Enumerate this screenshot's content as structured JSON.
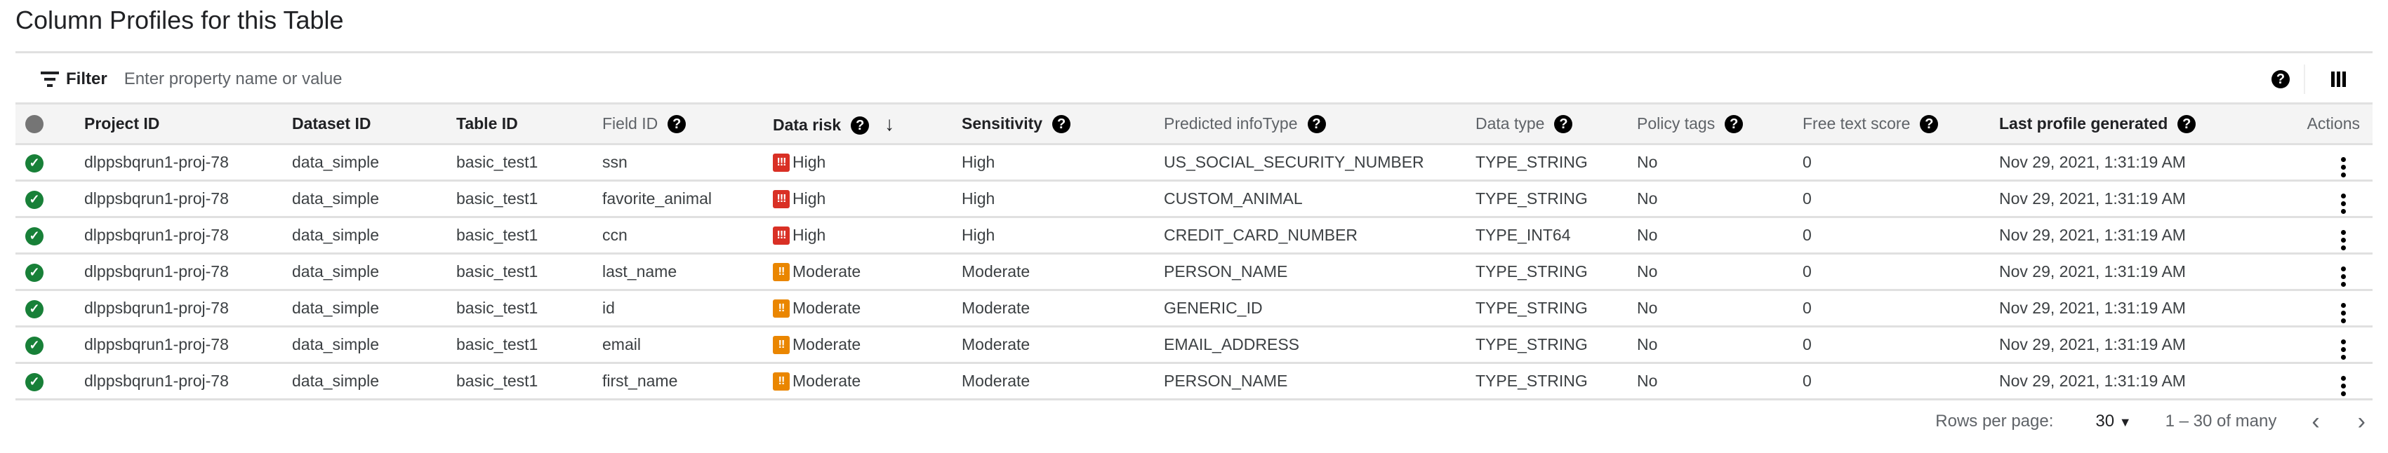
{
  "page": {
    "title": "Column Profiles for this Table"
  },
  "filter": {
    "label": "Filter",
    "placeholder": "Enter property name or value"
  },
  "toolbar": {
    "help_icon": "help-icon",
    "columns_icon": "column-view-icon"
  },
  "colors": {
    "high": "#d93025",
    "moderate": "#ea8600",
    "success": "#188038"
  },
  "table": {
    "headers": [
      "Project ID",
      "Dataset ID",
      "Table ID",
      "Field ID",
      "Data risk",
      "Sensitivity",
      "Predicted infoType",
      "Data type",
      "Policy tags",
      "Free text score",
      "Last profile generated",
      "Actions"
    ],
    "sort": {
      "column": "Data risk",
      "direction": "descending"
    },
    "rows": [
      {
        "project": "dlppsbqrun1-proj-78",
        "dataset": "data_simple",
        "table": "basic_test1",
        "field": "ssn",
        "risk": "High",
        "risk_glyph": "!!!",
        "sensitivity": "High",
        "infotype": "US_SOCIAL_SECURITY_NUMBER",
        "datatype": "TYPE_STRING",
        "policy": "No",
        "freetext": "0",
        "generated": "Nov 29, 2021, 1:31:19 AM"
      },
      {
        "project": "dlppsbqrun1-proj-78",
        "dataset": "data_simple",
        "table": "basic_test1",
        "field": "favorite_animal",
        "risk": "High",
        "risk_glyph": "!!!",
        "sensitivity": "High",
        "infotype": "CUSTOM_ANIMAL",
        "datatype": "TYPE_STRING",
        "policy": "No",
        "freetext": "0",
        "generated": "Nov 29, 2021, 1:31:19 AM"
      },
      {
        "project": "dlppsbqrun1-proj-78",
        "dataset": "data_simple",
        "table": "basic_test1",
        "field": "ccn",
        "risk": "High",
        "risk_glyph": "!!!",
        "sensitivity": "High",
        "infotype": "CREDIT_CARD_NUMBER",
        "datatype": "TYPE_INT64",
        "policy": "No",
        "freetext": "0",
        "generated": "Nov 29, 2021, 1:31:19 AM"
      },
      {
        "project": "dlppsbqrun1-proj-78",
        "dataset": "data_simple",
        "table": "basic_test1",
        "field": "last_name",
        "risk": "Moderate",
        "risk_glyph": "!!",
        "sensitivity": "Moderate",
        "infotype": "PERSON_NAME",
        "datatype": "TYPE_STRING",
        "policy": "No",
        "freetext": "0",
        "generated": "Nov 29, 2021, 1:31:19 AM"
      },
      {
        "project": "dlppsbqrun1-proj-78",
        "dataset": "data_simple",
        "table": "basic_test1",
        "field": "id",
        "risk": "Moderate",
        "risk_glyph": "!!",
        "sensitivity": "Moderate",
        "infotype": "GENERIC_ID",
        "datatype": "TYPE_STRING",
        "policy": "No",
        "freetext": "0",
        "generated": "Nov 29, 2021, 1:31:19 AM"
      },
      {
        "project": "dlppsbqrun1-proj-78",
        "dataset": "data_simple",
        "table": "basic_test1",
        "field": "email",
        "risk": "Moderate",
        "risk_glyph": "!!",
        "sensitivity": "Moderate",
        "infotype": "EMAIL_ADDRESS",
        "datatype": "TYPE_STRING",
        "policy": "No",
        "freetext": "0",
        "generated": "Nov 29, 2021, 1:31:19 AM"
      },
      {
        "project": "dlppsbqrun1-proj-78",
        "dataset": "data_simple",
        "table": "basic_test1",
        "field": "first_name",
        "risk": "Moderate",
        "risk_glyph": "!!",
        "sensitivity": "Moderate",
        "infotype": "PERSON_NAME",
        "datatype": "TYPE_STRING",
        "policy": "No",
        "freetext": "0",
        "generated": "Nov 29, 2021, 1:31:19 AM"
      }
    ]
  },
  "pagination": {
    "rows_per_page_label": "Rows per page:",
    "rows_per_page": "30",
    "range": "1 – 30 of many"
  }
}
